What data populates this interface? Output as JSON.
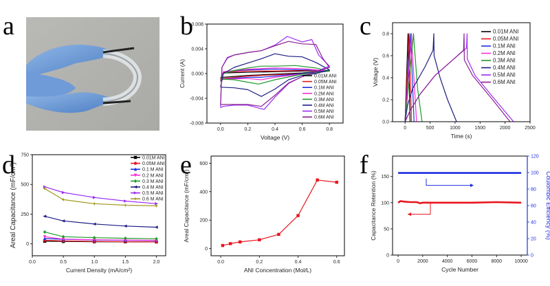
{
  "panels": {
    "a": {
      "letter": "a"
    },
    "b": {
      "letter": "b"
    },
    "c": {
      "letter": "c"
    },
    "d": {
      "letter": "d"
    },
    "e": {
      "letter": "e"
    },
    "f": {
      "letter": "f"
    }
  },
  "colors": {
    "c001": "#000000",
    "c005": "#e8141e",
    "c01": "#1c2fe0",
    "c02": "#ff2bd6",
    "c03": "#1e9a2a",
    "c04": "#1c1c84",
    "c05": "#9b2cf2",
    "c06": "#8a2090",
    "c06d": "#a29a20",
    "red": "#e8141e",
    "blue": "#1c2fe0"
  },
  "chart_data": [
    {
      "id": "b",
      "type": "line",
      "xlabel": "Voltage (V)",
      "ylabel": "Current (A)",
      "xlim": [
        -0.1,
        0.9
      ],
      "ylim": [
        -0.008,
        0.008
      ],
      "xticks": [
        0.0,
        0.2,
        0.4,
        0.6,
        0.8
      ],
      "xticklabels": [
        "0.0",
        "0.2",
        "0.4",
        "0.6",
        "0.8"
      ],
      "yticks": [
        -0.008,
        -0.004,
        0.0,
        0.004,
        0.008
      ],
      "yticklabels": [
        "-0.008",
        "-0.004",
        "0.000",
        "0.004",
        "0.008"
      ],
      "legend": "bottom-right",
      "series": [
        {
          "name": "0.01M ANI",
          "color": "#000000",
          "x": [
            0,
            0.02,
            0.2,
            0.4,
            0.6,
            0.8,
            0.6,
            0.4,
            0.2,
            0.02,
            0
          ],
          "y": [
            -0.0008,
            0.0001,
            0.0002,
            0.0003,
            0.0004,
            0.0005,
            0.0001,
            -0.0001,
            -0.0003,
            -0.0006,
            -0.0008
          ]
        },
        {
          "name": "0.05M ANI",
          "color": "#e8141e",
          "x": [
            0,
            0.02,
            0.2,
            0.4,
            0.6,
            0.8,
            0.6,
            0.4,
            0.2,
            0.02,
            0
          ],
          "y": [
            -0.001,
            0.0002,
            0.0004,
            0.0004,
            0.0005,
            0.0004,
            0,
            -0.0002,
            -0.0004,
            -0.0008,
            -0.001
          ]
        },
        {
          "name": "0.1M  ANI",
          "color": "#1c2fe0",
          "x": [
            0,
            0.02,
            0.2,
            0.4,
            0.6,
            0.8,
            0.6,
            0.4,
            0.3,
            0.2,
            0.02,
            0
          ],
          "y": [
            -0.0012,
            0.0003,
            0.0006,
            0.0007,
            0.0006,
            0.0005,
            0,
            -0.0004,
            -0.0006,
            -0.0006,
            -0.0009,
            -0.0012
          ]
        },
        {
          "name": "0.2M  ANI",
          "color": "#ff2bd6",
          "x": [
            0,
            0.02,
            0.2,
            0.4,
            0.6,
            0.8,
            0.6,
            0.4,
            0.3,
            0.2,
            0.02,
            0
          ],
          "y": [
            -0.0013,
            0.0003,
            0.0007,
            0.0009,
            0.0008,
            0.0004,
            -0.0001,
            -0.0006,
            -0.001,
            -0.0008,
            -0.0009,
            -0.0013
          ]
        },
        {
          "name": "0.3M  ANI",
          "color": "#1e9a2a",
          "x": [
            0,
            0.02,
            0.1,
            0.2,
            0.3,
            0.4,
            0.55,
            0.7,
            0.8,
            0.6,
            0.4,
            0.28,
            0.2,
            0.1,
            0.02,
            0
          ],
          "y": [
            -0.0012,
            0,
            0.0005,
            0.0009,
            0.0012,
            0.0012,
            0.0013,
            0.0009,
            0.0004,
            -0.0001,
            -0.001,
            -0.0017,
            -0.0014,
            -0.001,
            -0.0009,
            -0.0012
          ]
        },
        {
          "name": "0.4M  ANI",
          "color": "#1c1c84",
          "x": [
            0,
            0.02,
            0.1,
            0.2,
            0.3,
            0.4,
            0.5,
            0.6,
            0.7,
            0.8,
            0.7,
            0.6,
            0.5,
            0.4,
            0.3,
            0.2,
            0.1,
            0
          ],
          "y": [
            -0.0022,
            0,
            0.001,
            0.0017,
            0.0024,
            0.0032,
            0.0028,
            0.0027,
            0.0018,
            0.0006,
            0,
            -0.0003,
            -0.001,
            -0.0025,
            -0.0037,
            -0.0026,
            -0.0023,
            -0.0022
          ]
        },
        {
          "name": "0.5M  ANI",
          "color": "#9b2cf2",
          "x": [
            0,
            0.01,
            0.05,
            0.1,
            0.2,
            0.3,
            0.4,
            0.49,
            0.6,
            0.67,
            0.72,
            0.8,
            0.7,
            0.6,
            0.5,
            0.4,
            0.32,
            0.2,
            0.1,
            0.02,
            0
          ],
          "y": [
            -0.0055,
            0.001,
            0.0026,
            0.003,
            0.0034,
            0.0037,
            0.0046,
            0.006,
            0.0051,
            0.0055,
            0.003,
            0.0012,
            0.0003,
            -0.0005,
            -0.0016,
            -0.0038,
            -0.0058,
            -0.0051,
            -0.0051,
            -0.0053,
            -0.0055
          ]
        },
        {
          "name": "0.6M  ANI",
          "color": "#8a2090",
          "x": [
            0,
            0.01,
            0.05,
            0.1,
            0.2,
            0.3,
            0.4,
            0.5,
            0.6,
            0.7,
            0.75,
            0.8,
            0.7,
            0.6,
            0.5,
            0.4,
            0.3,
            0.2,
            0.1,
            0.02,
            0
          ],
          "y": [
            -0.005,
            0.001,
            0.0025,
            0.003,
            0.0034,
            0.0037,
            0.0045,
            0.0052,
            0.0048,
            0.0047,
            0.0025,
            0.001,
            0.0003,
            -0.0005,
            -0.0015,
            -0.0035,
            -0.0053,
            -0.005,
            -0.005,
            -0.005,
            -0.005
          ]
        }
      ]
    },
    {
      "id": "c",
      "type": "line",
      "xlabel": "Time (s)",
      "ylabel": "Voltage (V)",
      "xlim": [
        -250,
        2500
      ],
      "ylim": [
        0,
        0.9
      ],
      "xticks": [
        0,
        500,
        1000,
        1500,
        2000,
        2500
      ],
      "xticklabels": [
        "0",
        "500",
        "1000",
        "1500",
        "2000",
        "2500"
      ],
      "yticks": [
        0,
        0.2,
        0.4,
        0.6,
        0.8
      ],
      "yticklabels": [
        "0.0",
        "0.2",
        "0.4",
        "0.6",
        "0.8"
      ],
      "legend": "top-right",
      "series": [
        {
          "name": "0.01M ANI",
          "color": "#000000",
          "x": [
            0,
            60,
            65,
            100
          ],
          "y": [
            0,
            0.8,
            0.78,
            0
          ]
        },
        {
          "name": "0.05M ANI",
          "color": "#e8141e",
          "x": [
            0,
            80,
            85,
            130
          ],
          "y": [
            0,
            0.8,
            0.75,
            0
          ]
        },
        {
          "name": "0.1M  ANI",
          "color": "#1c2fe0",
          "x": [
            0,
            110,
            115,
            180
          ],
          "y": [
            0,
            0.8,
            0.74,
            0
          ]
        },
        {
          "name": "0.2M  ANI",
          "color": "#ff2bd6",
          "x": [
            0,
            130,
            135,
            230
          ],
          "y": [
            0,
            0.8,
            0.72,
            0
          ]
        },
        {
          "name": "0.3M  ANI",
          "color": "#1e9a2a",
          "x": [
            0,
            170,
            180,
            250,
            340
          ],
          "y": [
            0,
            0.8,
            0.72,
            0.3,
            0
          ]
        },
        {
          "name": "0.4M  ANI",
          "color": "#1c1c84",
          "x": [
            0,
            50,
            150,
            400,
            560,
            575,
            580,
            700,
            850,
            1030
          ],
          "y": [
            0,
            0.15,
            0.3,
            0.5,
            0.65,
            0.8,
            0.6,
            0.4,
            0.2,
            0
          ]
        },
        {
          "name": "0.5M  ANI",
          "color": "#9b2cf2",
          "x": [
            0,
            100,
            300,
            600,
            1000,
            1230,
            1240,
            1245,
            1400,
            1800,
            2170
          ],
          "y": [
            0,
            0.1,
            0.25,
            0.42,
            0.58,
            0.67,
            0.8,
            0.57,
            0.42,
            0.2,
            0
          ]
        },
        {
          "name": "0.6M  ANI",
          "color": "#8a2090",
          "x": [
            0,
            100,
            300,
            600,
            1000,
            1170,
            1180,
            1185,
            1350,
            1750,
            2100
          ],
          "y": [
            0,
            0.1,
            0.25,
            0.42,
            0.58,
            0.65,
            0.8,
            0.56,
            0.42,
            0.2,
            0
          ]
        }
      ]
    },
    {
      "id": "d",
      "type": "line",
      "xlabel": "Current Density (mA/cm²)",
      "ylabel": "Areal Capacitance (mF/cm²)",
      "xlim": [
        0,
        2.15
      ],
      "ylim": [
        -100,
        750
      ],
      "xticks": [
        0,
        0.5,
        1.0,
        1.5,
        2.0
      ],
      "xticklabels": [
        "0.0",
        "0.5",
        "1.0",
        "1.5",
        "2.0"
      ],
      "yticks": [
        0,
        250,
        500,
        750
      ],
      "yticklabels": [
        "0",
        "250",
        "500",
        "750"
      ],
      "legend": "top-right",
      "series": [
        {
          "name": "0.01M  ANI",
          "color": "#000000",
          "marker": "square",
          "x": [
            0.2,
            0.5,
            1.0,
            1.5,
            2.0
          ],
          "y": [
            22,
            20,
            18,
            17,
            16
          ]
        },
        {
          "name": "0.05M  ANI",
          "color": "#e8141e",
          "marker": "circle",
          "x": [
            0.2,
            0.5,
            1.0,
            1.5,
            2.0
          ],
          "y": [
            30,
            25,
            20,
            18,
            16
          ]
        },
        {
          "name": "0.1  M  ANI",
          "color": "#1c2fe0",
          "marker": "triangle-up",
          "x": [
            0.2,
            0.5,
            1.0,
            1.5,
            2.0
          ],
          "y": [
            45,
            38,
            33,
            30,
            28
          ]
        },
        {
          "name": "0.2  M  ANI",
          "color": "#ff2bd6",
          "marker": "triangle-down",
          "x": [
            0.2,
            0.5,
            1.0,
            1.5,
            2.0
          ],
          "y": [
            60,
            40,
            35,
            32,
            30
          ]
        },
        {
          "name": "0.3  M  ANI",
          "color": "#1e9a2a",
          "marker": "diamond",
          "x": [
            0.2,
            0.5,
            1.0,
            1.5,
            2.0
          ],
          "y": [
            100,
            60,
            52,
            47,
            43
          ]
        },
        {
          "name": "0.4  M  ANI",
          "color": "#1c1c84",
          "marker": "triangle-left",
          "x": [
            0.2,
            0.5,
            1.0,
            1.5,
            2.0
          ],
          "y": [
            232,
            193,
            167,
            150,
            140
          ]
        },
        {
          "name": "0.5  M  ANI",
          "color": "#9b2cf2",
          "marker": "triangle-right",
          "x": [
            0.2,
            0.5,
            1.0,
            1.5,
            2.0
          ],
          "y": [
            480,
            432,
            390,
            360,
            338
          ]
        },
        {
          "name": "0.6  M  ANI",
          "color": "#a29a20",
          "marker": "star",
          "x": [
            0.2,
            0.5,
            1.0,
            1.5,
            2.0
          ],
          "y": [
            465,
            372,
            338,
            325,
            320
          ]
        }
      ]
    },
    {
      "id": "e",
      "type": "line",
      "xlabel": "ANI Concentration (Mol/L)",
      "ylabel": "Areal Capacitance (mF/cm²)",
      "xlim": [
        -0.05,
        0.64
      ],
      "ylim": [
        -50,
        650
      ],
      "xticks": [
        0,
        0.2,
        0.4,
        0.6
      ],
      "xticklabels": [
        "0.0",
        "0.2",
        "0.4",
        "0.6"
      ],
      "yticks": [
        0,
        200,
        400,
        600
      ],
      "yticklabels": [
        "0",
        "200",
        "400",
        "600"
      ],
      "legend": "none",
      "series": [
        {
          "color": "#e8141e",
          "marker": "square",
          "x": [
            0.01,
            0.05,
            0.1,
            0.2,
            0.3,
            0.4,
            0.5,
            0.6
          ],
          "y": [
            22,
            35,
            47,
            62,
            100,
            232,
            482,
            466
          ]
        }
      ]
    },
    {
      "id": "f",
      "type": "line",
      "xlabel": "Cycle Number",
      "ylabel": "Capacitance Retention (%)",
      "y2label": "Coulombic Efficiency (%)",
      "xlim": [
        -450,
        10500
      ],
      "ylim": [
        0,
        189
      ],
      "y2lim": [
        0,
        120
      ],
      "xticks": [
        0,
        2000,
        4000,
        6000,
        8000,
        10000
      ],
      "xticklabels": [
        "0",
        "2000",
        "4000",
        "6000",
        "8000",
        "10000"
      ],
      "yticks": [
        0,
        50,
        100,
        150
      ],
      "yticklabels": [
        "0",
        "50",
        "100",
        "150"
      ],
      "y2ticks": [
        0,
        20,
        40,
        60,
        80,
        100,
        120
      ],
      "y2ticklabels": [
        "0",
        "20",
        "40",
        "60",
        "80",
        "100",
        "120"
      ],
      "legend": "none",
      "series": [
        {
          "color": "#e8141e",
          "axis": "left",
          "x": [
            0,
            200,
            500,
            1000,
            1500,
            1800,
            2000,
            4000,
            6000,
            8000,
            10000
          ],
          "y": [
            100,
            103,
            102,
            101,
            101,
            99,
            100,
            100,
            100,
            101,
            100
          ]
        },
        {
          "color": "#1c2fe0",
          "axis": "right",
          "x": [
            0,
            2000,
            4000,
            6000,
            8000,
            10000
          ],
          "y": [
            99.5,
            99.5,
            99.5,
            99.5,
            99.5,
            99.5
          ]
        }
      ]
    }
  ]
}
